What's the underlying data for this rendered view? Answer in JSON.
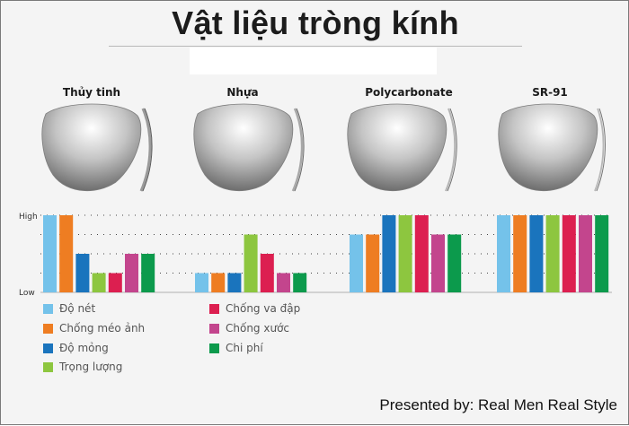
{
  "title": "Vật liệu tròng kính",
  "credit": "Presented by: Real Men Real Style",
  "materials": [
    "Thủy tinh",
    "Nhựa",
    "Polycarbonate",
    "SR-91"
  ],
  "legend": [
    {
      "label": "Độ nét",
      "color": "#74c2ea"
    },
    {
      "label": "Chống méo ảnh",
      "color": "#ee7d22"
    },
    {
      "label": "Độ mỏng",
      "color": "#1a74bd"
    },
    {
      "label": "Trọng lượng",
      "color": "#8dc63f"
    },
    {
      "label": "Chống va đập",
      "color": "#dc1f50"
    },
    {
      "label": "Chống xước",
      "color": "#c3458d"
    },
    {
      "label": "Chi phí",
      "color": "#0c9a4c"
    }
  ],
  "chart_data": {
    "type": "bar",
    "categories": [
      "Thủy tinh",
      "Nhựa",
      "Polycarbonate",
      "SR-91"
    ],
    "ylabel_high": "High",
    "ylabel_low": "Low",
    "ylim": [
      0,
      4
    ],
    "grid": "dotted-horizontal",
    "legend_position": "bottom-left",
    "series": [
      {
        "name": "Độ nét",
        "values": [
          4,
          1,
          3,
          4
        ]
      },
      {
        "name": "Chống méo ảnh",
        "values": [
          4,
          1,
          3,
          4
        ]
      },
      {
        "name": "Độ mỏng",
        "values": [
          2,
          1,
          4,
          4
        ]
      },
      {
        "name": "Trọng lượng",
        "values": [
          1,
          3,
          4,
          4
        ]
      },
      {
        "name": "Chống va đập",
        "values": [
          1,
          2,
          4,
          4
        ]
      },
      {
        "name": "Chống xước",
        "values": [
          2,
          1,
          3,
          4
        ]
      },
      {
        "name": "Chi phí",
        "values": [
          2,
          1,
          3,
          4
        ]
      }
    ]
  }
}
